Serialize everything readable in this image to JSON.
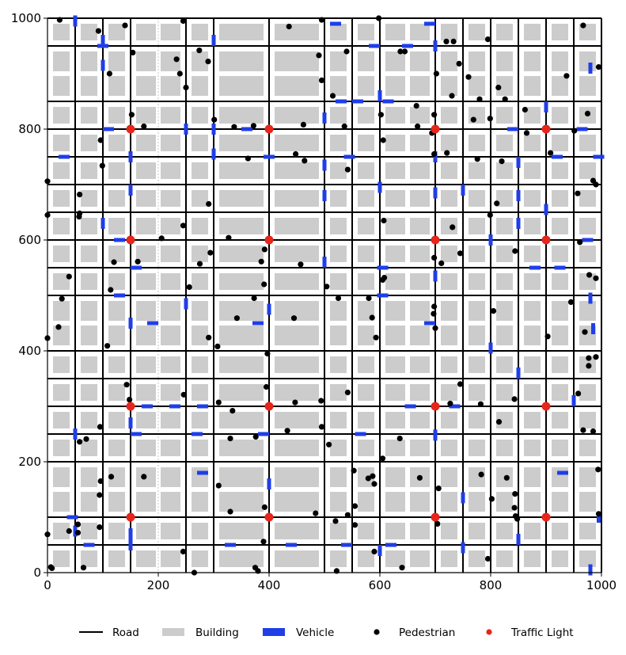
{
  "chart_data": {
    "type": "scatter",
    "title": "",
    "xlabel": "",
    "ylabel": "",
    "xlim": [
      0,
      1000
    ],
    "ylim": [
      0,
      1000
    ],
    "x_ticks": [
      0,
      200,
      400,
      600,
      800,
      1000
    ],
    "y_ticks": [
      0,
      200,
      400,
      600,
      800,
      1000
    ],
    "grid": true,
    "legend_position": "bottom",
    "colors": {
      "road": "#000000",
      "building": "#cccccc",
      "vehicle": "#1f3ee8",
      "pedestrian": "#000000",
      "traffic_light": "#e8251b"
    },
    "legend": [
      {
        "key": "road",
        "label": "Road",
        "marker": "line"
      },
      {
        "key": "building",
        "label": "Building",
        "marker": "rect"
      },
      {
        "key": "vehicle",
        "label": "Vehicle",
        "marker": "rect"
      },
      {
        "key": "pedestrian",
        "label": "Pedestrian",
        "marker": "dot"
      },
      {
        "key": "traffic_light",
        "label": "Traffic Light",
        "marker": "dot"
      }
    ],
    "roads": {
      "vertical_x": [
        50,
        100,
        150,
        250,
        300,
        400,
        500,
        550,
        600,
        700,
        750,
        800,
        850,
        900,
        950,
        1000
      ],
      "horizontal_y": [
        50,
        100,
        200,
        250,
        300,
        350,
        400,
        500,
        550,
        600,
        650,
        700,
        750,
        800,
        850,
        950,
        1000
      ],
      "secondary_x": [
        200,
        650
      ],
      "secondary_y": [
        150,
        450,
        900
      ]
    },
    "traffic_lights": [
      [
        150,
        800
      ],
      [
        400,
        800
      ],
      [
        700,
        800
      ],
      [
        900,
        800
      ],
      [
        150,
        600
      ],
      [
        400,
        600
      ],
      [
        700,
        600
      ],
      [
        900,
        600
      ],
      [
        150,
        300
      ],
      [
        400,
        300
      ],
      [
        700,
        300
      ],
      [
        900,
        300
      ],
      [
        150,
        100
      ],
      [
        400,
        100
      ],
      [
        700,
        100
      ],
      [
        900,
        100
      ]
    ],
    "vehicles": [
      {
        "x": 50,
        "y": 995,
        "o": "v"
      },
      {
        "x": 100,
        "y": 960,
        "o": "v"
      },
      {
        "x": 100,
        "y": 950,
        "o": "h"
      },
      {
        "x": 100,
        "y": 915,
        "o": "v"
      },
      {
        "x": 300,
        "y": 960,
        "o": "v"
      },
      {
        "x": 520,
        "y": 990,
        "o": "h"
      },
      {
        "x": 590,
        "y": 950,
        "o": "h"
      },
      {
        "x": 690,
        "y": 990,
        "o": "h"
      },
      {
        "x": 700,
        "y": 950,
        "o": "v"
      },
      {
        "x": 650,
        "y": 950,
        "o": "h"
      },
      {
        "x": 600,
        "y": 860,
        "o": "v"
      },
      {
        "x": 530,
        "y": 850,
        "o": "h"
      },
      {
        "x": 560,
        "y": 850,
        "o": "h"
      },
      {
        "x": 615,
        "y": 850,
        "o": "h"
      },
      {
        "x": 500,
        "y": 820,
        "o": "v"
      },
      {
        "x": 900,
        "y": 840,
        "o": "v"
      },
      {
        "x": 980,
        "y": 910,
        "o": "v"
      },
      {
        "x": 110,
        "y": 800,
        "o": "h"
      },
      {
        "x": 250,
        "y": 800,
        "o": "v"
      },
      {
        "x": 300,
        "y": 800,
        "o": "v"
      },
      {
        "x": 360,
        "y": 800,
        "o": "h"
      },
      {
        "x": 840,
        "y": 800,
        "o": "h"
      },
      {
        "x": 965,
        "y": 800,
        "o": "h"
      },
      {
        "x": 30,
        "y": 750,
        "o": "h"
      },
      {
        "x": 150,
        "y": 750,
        "o": "v"
      },
      {
        "x": 300,
        "y": 755,
        "o": "v"
      },
      {
        "x": 400,
        "y": 750,
        "o": "h"
      },
      {
        "x": 500,
        "y": 735,
        "o": "v"
      },
      {
        "x": 545,
        "y": 750,
        "o": "h"
      },
      {
        "x": 700,
        "y": 750,
        "o": "v"
      },
      {
        "x": 850,
        "y": 740,
        "o": "v"
      },
      {
        "x": 920,
        "y": 750,
        "o": "h"
      },
      {
        "x": 995,
        "y": 750,
        "o": "h"
      },
      {
        "x": 150,
        "y": 690,
        "o": "v"
      },
      {
        "x": 500,
        "y": 680,
        "o": "v"
      },
      {
        "x": 600,
        "y": 695,
        "o": "v"
      },
      {
        "x": 700,
        "y": 685,
        "o": "v"
      },
      {
        "x": 750,
        "y": 690,
        "o": "v"
      },
      {
        "x": 850,
        "y": 680,
        "o": "v"
      },
      {
        "x": 900,
        "y": 655,
        "o": "v"
      },
      {
        "x": 100,
        "y": 630,
        "o": "v"
      },
      {
        "x": 850,
        "y": 630,
        "o": "v"
      },
      {
        "x": 130,
        "y": 600,
        "o": "h"
      },
      {
        "x": 800,
        "y": 600,
        "o": "v"
      },
      {
        "x": 975,
        "y": 600,
        "o": "h"
      },
      {
        "x": 160,
        "y": 550,
        "o": "h"
      },
      {
        "x": 500,
        "y": 560,
        "o": "v"
      },
      {
        "x": 605,
        "y": 550,
        "o": "h"
      },
      {
        "x": 700,
        "y": 535,
        "o": "v"
      },
      {
        "x": 880,
        "y": 550,
        "o": "h"
      },
      {
        "x": 925,
        "y": 550,
        "o": "h"
      },
      {
        "x": 130,
        "y": 500,
        "o": "h"
      },
      {
        "x": 250,
        "y": 485,
        "o": "v"
      },
      {
        "x": 400,
        "y": 475,
        "o": "v"
      },
      {
        "x": 605,
        "y": 500,
        "o": "h"
      },
      {
        "x": 980,
        "y": 495,
        "o": "v"
      },
      {
        "x": 150,
        "y": 450,
        "o": "v"
      },
      {
        "x": 190,
        "y": 450,
        "o": "h"
      },
      {
        "x": 380,
        "y": 450,
        "o": "h"
      },
      {
        "x": 690,
        "y": 450,
        "o": "h"
      },
      {
        "x": 985,
        "y": 440,
        "o": "v"
      },
      {
        "x": 800,
        "y": 405,
        "o": "v"
      },
      {
        "x": 850,
        "y": 360,
        "o": "v"
      },
      {
        "x": 180,
        "y": 300,
        "o": "h"
      },
      {
        "x": 230,
        "y": 300,
        "o": "h"
      },
      {
        "x": 280,
        "y": 300,
        "o": "h"
      },
      {
        "x": 655,
        "y": 300,
        "o": "h"
      },
      {
        "x": 735,
        "y": 300,
        "o": "h"
      },
      {
        "x": 950,
        "y": 310,
        "o": "v"
      },
      {
        "x": 150,
        "y": 270,
        "o": "v"
      },
      {
        "x": 50,
        "y": 250,
        "o": "v"
      },
      {
        "x": 160,
        "y": 250,
        "o": "h"
      },
      {
        "x": 270,
        "y": 250,
        "o": "h"
      },
      {
        "x": 390,
        "y": 250,
        "o": "h"
      },
      {
        "x": 565,
        "y": 250,
        "o": "h"
      },
      {
        "x": 700,
        "y": 248,
        "o": "v"
      },
      {
        "x": 280,
        "y": 180,
        "o": "h"
      },
      {
        "x": 930,
        "y": 180,
        "o": "h"
      },
      {
        "x": 400,
        "y": 160,
        "o": "v"
      },
      {
        "x": 750,
        "y": 135,
        "o": "v"
      },
      {
        "x": 45,
        "y": 100,
        "o": "h"
      },
      {
        "x": 995,
        "y": 100,
        "o": "v"
      },
      {
        "x": 150,
        "y": 70,
        "o": "v"
      },
      {
        "x": 50,
        "y": 75,
        "o": "v"
      },
      {
        "x": 850,
        "y": 60,
        "o": "v"
      },
      {
        "x": 75,
        "y": 50,
        "o": "h"
      },
      {
        "x": 150,
        "y": 50,
        "o": "v"
      },
      {
        "x": 330,
        "y": 50,
        "o": "h"
      },
      {
        "x": 440,
        "y": 50,
        "o": "h"
      },
      {
        "x": 540,
        "y": 50,
        "o": "h"
      },
      {
        "x": 600,
        "y": 40,
        "o": "v"
      },
      {
        "x": 620,
        "y": 50,
        "o": "h"
      },
      {
        "x": 750,
        "y": 45,
        "o": "v"
      },
      {
        "x": 980,
        "y": 5,
        "o": "v"
      }
    ],
    "pedestrians": [
      [
        22,
        997
      ],
      [
        92,
        977
      ],
      [
        140,
        987
      ],
      [
        245,
        995
      ],
      [
        495,
        997
      ],
      [
        598,
        1000
      ],
      [
        967,
        987
      ],
      [
        436,
        985
      ],
      [
        154,
        938
      ],
      [
        233,
        926
      ],
      [
        274,
        942
      ],
      [
        290,
        922
      ],
      [
        112,
        900
      ],
      [
        239,
        900
      ],
      [
        250,
        875
      ],
      [
        490,
        933
      ],
      [
        495,
        888
      ],
      [
        540,
        940
      ],
      [
        637,
        940
      ],
      [
        645,
        940
      ],
      [
        702,
        900
      ],
      [
        720,
        958
      ],
      [
        733,
        958
      ],
      [
        743,
        918
      ],
      [
        760,
        894
      ],
      [
        795,
        962
      ],
      [
        814,
        875
      ],
      [
        826,
        854
      ],
      [
        937,
        896
      ],
      [
        995,
        912
      ],
      [
        515,
        860
      ],
      [
        602,
        826
      ],
      [
        666,
        842
      ],
      [
        698,
        826
      ],
      [
        730,
        860
      ],
      [
        780,
        854
      ],
      [
        799,
        819
      ],
      [
        152,
        826
      ],
      [
        301,
        817
      ],
      [
        337,
        804
      ],
      [
        372,
        806
      ],
      [
        174,
        805
      ],
      [
        462,
        808
      ],
      [
        536,
        805
      ],
      [
        668,
        805
      ],
      [
        694,
        793
      ],
      [
        769,
        817
      ],
      [
        862,
        835
      ],
      [
        865,
        793
      ],
      [
        951,
        797
      ],
      [
        975,
        828
      ],
      [
        96,
        780
      ],
      [
        606,
        780
      ],
      [
        99,
        734
      ],
      [
        362,
        747
      ],
      [
        448,
        755
      ],
      [
        464,
        743
      ],
      [
        542,
        727
      ],
      [
        698,
        755
      ],
      [
        721,
        757
      ],
      [
        776,
        746
      ],
      [
        820,
        742
      ],
      [
        908,
        757
      ],
      [
        0,
        706
      ],
      [
        58,
        682
      ],
      [
        291,
        665
      ],
      [
        985,
        707
      ],
      [
        990,
        700
      ],
      [
        957,
        684
      ],
      [
        0,
        645
      ],
      [
        58,
        648
      ],
      [
        57,
        642
      ],
      [
        607,
        635
      ],
      [
        731,
        623
      ],
      [
        799,
        645
      ],
      [
        811,
        666
      ],
      [
        245,
        626
      ],
      [
        206,
        603
      ],
      [
        327,
        604
      ],
      [
        392,
        583
      ],
      [
        844,
        580
      ],
      [
        961,
        596
      ],
      [
        39,
        534
      ],
      [
        114,
        510
      ],
      [
        120,
        560
      ],
      [
        163,
        561
      ],
      [
        256,
        515
      ],
      [
        275,
        557
      ],
      [
        294,
        577
      ],
      [
        386,
        561
      ],
      [
        391,
        520
      ],
      [
        457,
        556
      ],
      [
        504,
        516
      ],
      [
        605,
        528
      ],
      [
        608,
        532
      ],
      [
        698,
        568
      ],
      [
        711,
        558
      ],
      [
        745,
        576
      ],
      [
        978,
        537
      ],
      [
        990,
        531
      ],
      [
        26,
        494
      ],
      [
        373,
        495
      ],
      [
        525,
        495
      ],
      [
        580,
        495
      ],
      [
        698,
        480
      ],
      [
        697,
        467
      ],
      [
        805,
        472
      ],
      [
        945,
        488
      ],
      [
        20,
        443
      ],
      [
        342,
        459
      ],
      [
        445,
        459
      ],
      [
        586,
        460
      ],
      [
        700,
        441
      ],
      [
        0,
        423
      ],
      [
        108,
        409
      ],
      [
        291,
        424
      ],
      [
        307,
        408
      ],
      [
        397,
        395
      ],
      [
        593,
        424
      ],
      [
        903,
        426
      ],
      [
        970,
        434
      ],
      [
        977,
        387
      ],
      [
        977,
        373
      ],
      [
        990,
        389
      ],
      [
        143,
        339
      ],
      [
        148,
        312
      ],
      [
        246,
        321
      ],
      [
        309,
        307
      ],
      [
        395,
        335
      ],
      [
        447,
        307
      ],
      [
        494,
        310
      ],
      [
        542,
        325
      ],
      [
        745,
        340
      ],
      [
        727,
        305
      ],
      [
        782,
        304
      ],
      [
        843,
        313
      ],
      [
        958,
        323
      ],
      [
        334,
        292
      ],
      [
        95,
        263
      ],
      [
        58,
        236
      ],
      [
        70,
        241
      ],
      [
        330,
        242
      ],
      [
        376,
        245
      ],
      [
        433,
        256
      ],
      [
        495,
        263
      ],
      [
        508,
        231
      ],
      [
        636,
        242
      ],
      [
        967,
        257
      ],
      [
        985,
        255
      ],
      [
        815,
        272
      ],
      [
        553,
        184
      ],
      [
        605,
        206
      ],
      [
        579,
        170
      ],
      [
        587,
        174
      ],
      [
        590,
        160
      ],
      [
        672,
        171
      ],
      [
        783,
        177
      ],
      [
        829,
        171
      ],
      [
        994,
        186
      ],
      [
        96,
        165
      ],
      [
        115,
        173
      ],
      [
        174,
        173
      ],
      [
        94,
        140
      ],
      [
        309,
        157
      ],
      [
        706,
        152
      ],
      [
        844,
        142
      ],
      [
        802,
        133
      ],
      [
        392,
        118
      ],
      [
        555,
        120
      ],
      [
        330,
        110
      ],
      [
        484,
        107
      ],
      [
        843,
        117
      ],
      [
        845,
        102
      ],
      [
        848,
        97
      ],
      [
        995,
        106
      ],
      [
        0,
        69
      ],
      [
        39,
        75
      ],
      [
        55,
        87
      ],
      [
        55,
        72
      ],
      [
        94,
        82
      ],
      [
        520,
        93
      ],
      [
        542,
        104
      ],
      [
        555,
        86
      ],
      [
        704,
        88
      ],
      [
        390,
        56
      ],
      [
        245,
        38
      ],
      [
        6,
        10
      ],
      [
        8,
        8
      ],
      [
        65,
        9
      ],
      [
        265,
        0
      ],
      [
        375,
        9
      ],
      [
        380,
        3
      ],
      [
        522,
        3
      ],
      [
        590,
        38
      ],
      [
        640,
        9
      ],
      [
        795,
        25
      ]
    ]
  }
}
